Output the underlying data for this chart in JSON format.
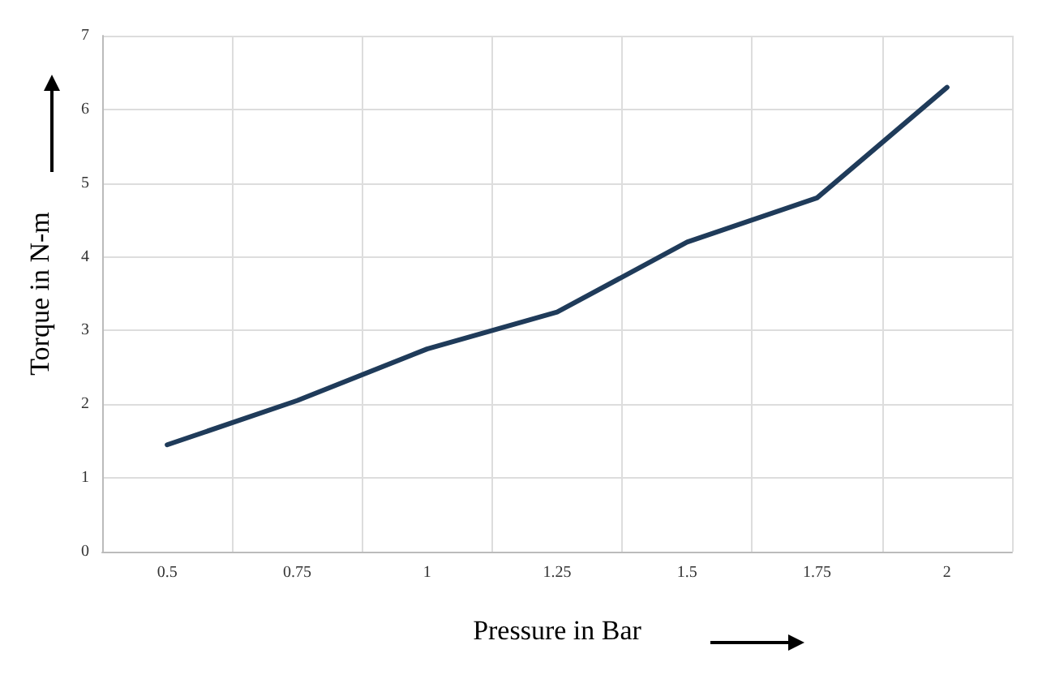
{
  "chart_data": {
    "type": "line",
    "xlabel": "Pressure in Bar",
    "ylabel": "Torque in N-m",
    "categories": [
      "0.5",
      "0.75",
      "1",
      "1.25",
      "1.5",
      "1.75",
      "2"
    ],
    "series": [
      {
        "color": "#1f3b5a",
        "values": [
          1.45,
          2.05,
          2.75,
          3.25,
          4.2,
          4.8,
          6.3
        ]
      }
    ],
    "ylim": [
      0,
      7
    ],
    "yticks": [
      0,
      1,
      2,
      3,
      4,
      5,
      6,
      7
    ],
    "grid": true,
    "marker": "none",
    "line_style": "solid"
  }
}
